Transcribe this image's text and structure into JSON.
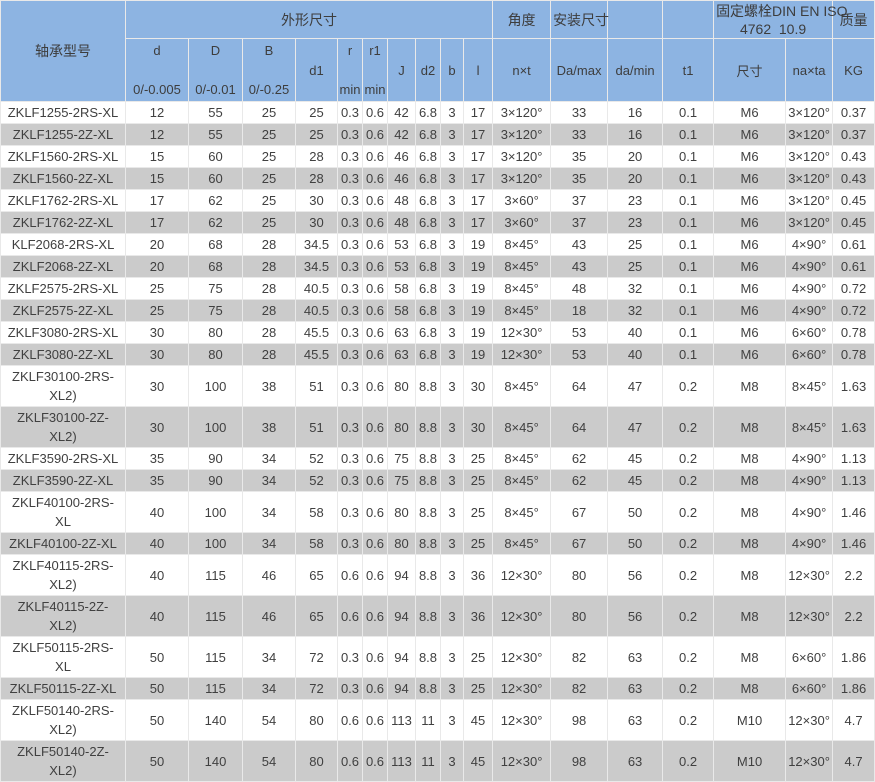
{
  "colors": {
    "header_bg": "#8db4e2",
    "row_stripe": "#cbcbcb",
    "row_plain": "#ffffff",
    "text": "#404040",
    "grid_line": "#e9e9e9"
  },
  "chart_data": {
    "type": "table",
    "title": "",
    "layout": {
      "grid": true,
      "striped": true,
      "header_rows": 2
    },
    "groups": {
      "model": "轴承型号",
      "dimensions": "外形尺寸",
      "angle": "角度",
      "mounting": "安装尺寸",
      "bolt_line1": "固定螺栓DIN EN ISO",
      "bolt_line2": "4762  10.9",
      "mass": "质量"
    },
    "columns": [
      {
        "label": "d",
        "sub": "0/-0.005"
      },
      {
        "label": "D",
        "sub": "0/-0.01"
      },
      {
        "label": "B",
        "sub": "0/-0.25"
      },
      {
        "label": "d1",
        "sub": ""
      },
      {
        "label": "r",
        "sub": "min"
      },
      {
        "label": "r1",
        "sub": "min"
      },
      {
        "label": "J",
        "sub": ""
      },
      {
        "label": "d2",
        "sub": ""
      },
      {
        "label": "b",
        "sub": ""
      },
      {
        "label": "l",
        "sub": ""
      },
      {
        "label": "n×t",
        "sub": ""
      },
      {
        "label": "Da/max",
        "sub": ""
      },
      {
        "label": "da/min",
        "sub": ""
      },
      {
        "label": "t1",
        "sub": ""
      },
      {
        "label": "尺寸",
        "sub": ""
      },
      {
        "label": "na×ta",
        "sub": ""
      },
      {
        "label": "KG",
        "sub": ""
      }
    ],
    "rows": [
      [
        "ZKLF1255-2RS-XL",
        "12",
        "55",
        "25",
        "25",
        "0.3",
        "0.6",
        "42",
        "6.8",
        "3",
        "17",
        "3×120°",
        "33",
        "16",
        "0.1",
        "M6",
        "3×120°",
        "0.37"
      ],
      [
        "ZKLF1255-2Z-XL",
        "12",
        "55",
        "25",
        "25",
        "0.3",
        "0.6",
        "42",
        "6.8",
        "3",
        "17",
        "3×120°",
        "33",
        "16",
        "0.1",
        "M6",
        "3×120°",
        "0.37"
      ],
      [
        "ZKLF1560-2RS-XL",
        "15",
        "60",
        "25",
        "28",
        "0.3",
        "0.6",
        "46",
        "6.8",
        "3",
        "17",
        "3×120°",
        "35",
        "20",
        "0.1",
        "M6",
        "3×120°",
        "0.43"
      ],
      [
        "ZKLF1560-2Z-XL",
        "15",
        "60",
        "25",
        "28",
        "0.3",
        "0.6",
        "46",
        "6.8",
        "3",
        "17",
        "3×120°",
        "35",
        "20",
        "0.1",
        "M6",
        "3×120°",
        "0.43"
      ],
      [
        "ZKLF1762-2RS-XL",
        "17",
        "62",
        "25",
        "30",
        "0.3",
        "0.6",
        "48",
        "6.8",
        "3",
        "17",
        "3×60°",
        "37",
        "23",
        "0.1",
        "M6",
        "3×120°",
        "0.45"
      ],
      [
        "ZKLF1762-2Z-XL",
        "17",
        "62",
        "25",
        "30",
        "0.3",
        "0.6",
        "48",
        "6.8",
        "3",
        "17",
        "3×60°",
        "37",
        "23",
        "0.1",
        "M6",
        "3×120°",
        "0.45"
      ],
      [
        "KLF2068-2RS-XL",
        "20",
        "68",
        "28",
        "34.5",
        "0.3",
        "0.6",
        "53",
        "6.8",
        "3",
        "19",
        "8×45°",
        "43",
        "25",
        "0.1",
        "M6",
        "4×90°",
        "0.61"
      ],
      [
        "ZKLF2068-2Z-XL",
        "20",
        "68",
        "28",
        "34.5",
        "0.3",
        "0.6",
        "53",
        "6.8",
        "3",
        "19",
        "8×45°",
        "43",
        "25",
        "0.1",
        "M6",
        "4×90°",
        "0.61"
      ],
      [
        "ZKLF2575-2RS-XL",
        "25",
        "75",
        "28",
        "40.5",
        "0.3",
        "0.6",
        "58",
        "6.8",
        "3",
        "19",
        "8×45°",
        "48",
        "32",
        "0.1",
        "M6",
        "4×90°",
        "0.72"
      ],
      [
        "ZKLF2575-2Z-XL",
        "25",
        "75",
        "28",
        "40.5",
        "0.3",
        "0.6",
        "58",
        "6.8",
        "3",
        "19",
        "8×45°",
        "18",
        "32",
        "0.1",
        "M6",
        "4×90°",
        "0.72"
      ],
      [
        "ZKLF3080-2RS-XL",
        "30",
        "80",
        "28",
        "45.5",
        "0.3",
        "0.6",
        "63",
        "6.8",
        "3",
        "19",
        "12×30°",
        "53",
        "40",
        "0.1",
        "M6",
        "6×60°",
        "0.78"
      ],
      [
        "ZKLF3080-2Z-XL",
        "30",
        "80",
        "28",
        "45.5",
        "0.3",
        "0.6",
        "63",
        "6.8",
        "3",
        "19",
        "12×30°",
        "53",
        "40",
        "0.1",
        "M6",
        "6×60°",
        "0.78"
      ],
      [
        "ZKLF30100-2RS-\nXL2)",
        "30",
        "100",
        "38",
        "51",
        "0.3",
        "0.6",
        "80",
        "8.8",
        "3",
        "30",
        "8×45°",
        "64",
        "47",
        "0.2",
        "M8",
        "8×45°",
        "1.63"
      ],
      [
        "ZKLF30100-2Z-\nXL2)",
        "30",
        "100",
        "38",
        "51",
        "0.3",
        "0.6",
        "80",
        "8.8",
        "3",
        "30",
        "8×45°",
        "64",
        "47",
        "0.2",
        "M8",
        "8×45°",
        "1.63"
      ],
      [
        "ZKLF3590-2RS-XL",
        "35",
        "90",
        "34",
        "52",
        "0.3",
        "0.6",
        "75",
        "8.8",
        "3",
        "25",
        "8×45°",
        "62",
        "45",
        "0.2",
        "M8",
        "4×90°",
        "1.13"
      ],
      [
        "ZKLF3590-2Z-XL",
        "35",
        "90",
        "34",
        "52",
        "0.3",
        "0.6",
        "75",
        "8.8",
        "3",
        "25",
        "8×45°",
        "62",
        "45",
        "0.2",
        "M8",
        "4×90°",
        "1.13"
      ],
      [
        "ZKLF40100-2RS-\nXL",
        "40",
        "100",
        "34",
        "58",
        "0.3",
        "0.6",
        "80",
        "8.8",
        "3",
        "25",
        "8×45°",
        "67",
        "50",
        "0.2",
        "M8",
        "4×90°",
        "1.46"
      ],
      [
        "ZKLF40100-2Z-XL",
        "40",
        "100",
        "34",
        "58",
        "0.3",
        "0.6",
        "80",
        "8.8",
        "3",
        "25",
        "8×45°",
        "67",
        "50",
        "0.2",
        "M8",
        "4×90°",
        "1.46"
      ],
      [
        "ZKLF40115-2RS-\nXL2)",
        "40",
        "115",
        "46",
        "65",
        "0.6",
        "0.6",
        "94",
        "8.8",
        "3",
        "36",
        "12×30°",
        "80",
        "56",
        "0.2",
        "M8",
        "12×30°",
        "2.2"
      ],
      [
        "ZKLF40115-2Z-\nXL2)",
        "40",
        "115",
        "46",
        "65",
        "0.6",
        "0.6",
        "94",
        "8.8",
        "3",
        "36",
        "12×30°",
        "80",
        "56",
        "0.2",
        "M8",
        "12×30°",
        "2.2"
      ],
      [
        "ZKLF50115-2RS-\nXL",
        "50",
        "115",
        "34",
        "72",
        "0.3",
        "0.6",
        "94",
        "8.8",
        "3",
        "25",
        "12×30°",
        "82",
        "63",
        "0.2",
        "M8",
        "6×60°",
        "1.86"
      ],
      [
        "ZKLF50115-2Z-XL",
        "50",
        "115",
        "34",
        "72",
        "0.3",
        "0.6",
        "94",
        "8.8",
        "3",
        "25",
        "12×30°",
        "82",
        "63",
        "0.2",
        "M8",
        "6×60°",
        "1.86"
      ],
      [
        "ZKLF50140-2RS-\nXL2)",
        "50",
        "140",
        "54",
        "80",
        "0.6",
        "0.6",
        "113",
        "11",
        "3",
        "45",
        "12×30°",
        "98",
        "63",
        "0.2",
        "M10",
        "12×30°",
        "4.7"
      ],
      [
        "ZKLF50140-2Z-\nXL2)",
        "50",
        "140",
        "54",
        "80",
        "0.6",
        "0.6",
        "113",
        "11",
        "3",
        "45",
        "12×30°",
        "98",
        "63",
        "0.2",
        "M10",
        "12×30°",
        "4.7"
      ]
    ]
  }
}
